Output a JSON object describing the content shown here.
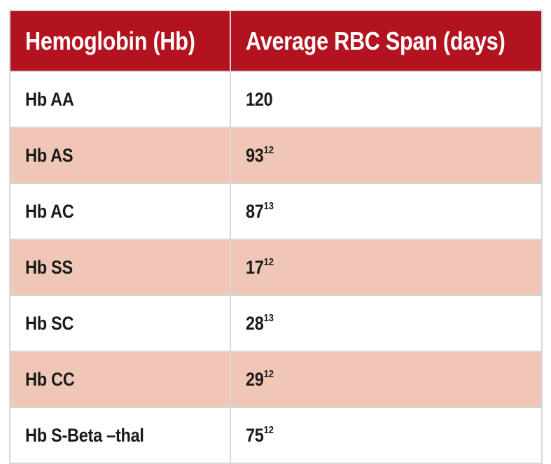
{
  "table": {
    "columns": [
      {
        "label": "Hemoglobin (Hb)"
      },
      {
        "label": "Average RBC Span (days)"
      }
    ],
    "rows": [
      {
        "hb": "Hb AA",
        "span": "120",
        "ref": ""
      },
      {
        "hb": "Hb AS",
        "span": "93",
        "ref": "12"
      },
      {
        "hb": "Hb AC",
        "span": "87",
        "ref": "13"
      },
      {
        "hb": "Hb SS",
        "span": "17",
        "ref": "12"
      },
      {
        "hb": "Hb SC",
        "span": "28",
        "ref": "13"
      },
      {
        "hb": "Hb CC",
        "span": "29",
        "ref": "12"
      },
      {
        "hb": "Hb S-Beta –thal",
        "span": "75",
        "ref": "12"
      }
    ],
    "colors": {
      "header_bg": "#b3131f",
      "header_text": "#ffffff",
      "row_bg": "#ffffff",
      "row_alt_bg": "#f0c6b7",
      "border": "#d6d9d8",
      "text": "#1a1a1a"
    }
  },
  "chart_data": {
    "type": "table",
    "title": "",
    "columns": [
      "Hemoglobin (Hb)",
      "Average RBC Span (days)"
    ],
    "rows": [
      {
        "hemoglobin": "Hb AA",
        "avg_rbc_span_days": 120,
        "reference": null
      },
      {
        "hemoglobin": "Hb AS",
        "avg_rbc_span_days": 93,
        "reference": 12
      },
      {
        "hemoglobin": "Hb AC",
        "avg_rbc_span_days": 87,
        "reference": 13
      },
      {
        "hemoglobin": "Hb SS",
        "avg_rbc_span_days": 17,
        "reference": 12
      },
      {
        "hemoglobin": "Hb SC",
        "avg_rbc_span_days": 28,
        "reference": 13
      },
      {
        "hemoglobin": "Hb CC",
        "avg_rbc_span_days": 29,
        "reference": 12
      },
      {
        "hemoglobin": "Hb S-Beta –thal",
        "avg_rbc_span_days": 75,
        "reference": 12
      }
    ],
    "layout_hints": {
      "header_style": "dark-red background, white bold condensed text",
      "row_striping": "odd rows white, even rows light peach",
      "grid": "light gray 2px borders on all cells"
    }
  }
}
